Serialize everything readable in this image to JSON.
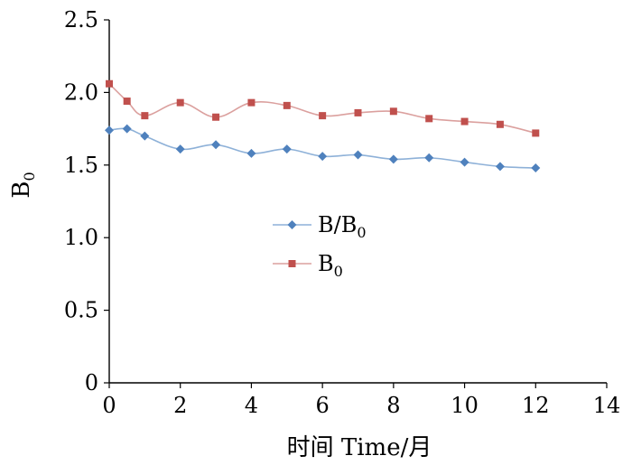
{
  "chart_data": {
    "type": "line",
    "xlabel": "时间  Time/月",
    "ylabel": "B0",
    "ylabel_main": "B",
    "ylabel_sub": "0",
    "xlim": [
      0,
      14
    ],
    "ylim": [
      0,
      2.5
    ],
    "xticks": [
      "0",
      "2",
      "4",
      "6",
      "8",
      "10",
      "12",
      "14"
    ],
    "yticks": [
      "0",
      "0.5",
      "1.0",
      "1.5",
      "2.0",
      "2.5"
    ],
    "grid": false,
    "legend": "center-left",
    "series": [
      {
        "name": "B/B0",
        "name_main": "B/B",
        "name_sub": "0",
        "color": "#4f81bd",
        "line_color": "#8eb1d8",
        "marker": "diamond",
        "x": [
          0,
          0.5,
          1,
          2,
          3,
          4,
          5,
          6,
          7,
          8,
          9,
          10,
          11,
          12
        ],
        "y": [
          1.74,
          1.75,
          1.7,
          1.61,
          1.64,
          1.58,
          1.61,
          1.56,
          1.57,
          1.54,
          1.55,
          1.52,
          1.49,
          1.48
        ]
      },
      {
        "name": "B0",
        "name_main": "B",
        "name_sub": "0",
        "color": "#c0504d",
        "line_color": "#dba09e",
        "marker": "square",
        "x": [
          0,
          0.5,
          1,
          2,
          3,
          4,
          5,
          6,
          7,
          8,
          9,
          10,
          11,
          12
        ],
        "y": [
          2.06,
          1.94,
          1.84,
          1.93,
          1.83,
          1.93,
          1.91,
          1.84,
          1.86,
          1.87,
          1.82,
          1.8,
          1.78,
          1.72
        ]
      }
    ]
  }
}
